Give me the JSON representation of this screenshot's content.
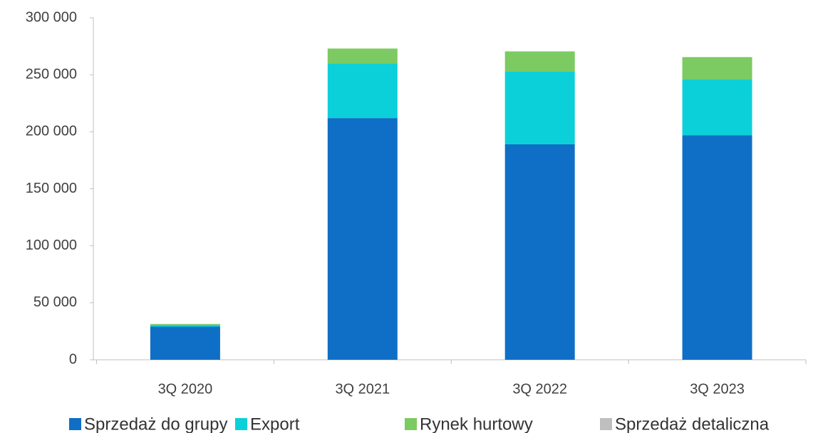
{
  "chart_data": {
    "type": "stacked_bar",
    "categories": [
      "3Q 2020",
      "3Q 2021",
      "3Q 2022",
      "3Q 2023"
    ],
    "series": [
      {
        "name": "Sprzedaż do grupy",
        "color": "#0f6fc6",
        "values": [
          29000,
          212000,
          189000,
          197000
        ]
      },
      {
        "name": "Export",
        "color": "#0bd0d9",
        "values": [
          1500,
          48000,
          64000,
          49000
        ]
      },
      {
        "name": "Rynek hurtowy",
        "color": "#7cca62",
        "values": [
          800,
          13000,
          17500,
          19500
        ]
      },
      {
        "name": "Sprzedaż detaliczna",
        "color": "#bfbfbf",
        "values": [
          200,
          0,
          0,
          0
        ]
      }
    ],
    "ylim": [
      0,
      300000
    ],
    "yticks": [
      0,
      {
        "value": 50000,
        "label": "50 000"
      },
      {
        "value": 100000,
        "label": "100 000"
      },
      {
        "value": 150000,
        "label": "150 000"
      },
      {
        "value": 200000,
        "label": "200 000"
      },
      {
        "value": 250000,
        "label": "250 000"
      },
      {
        "value": 300000,
        "label": "300 000"
      }
    ],
    "legend": "bottom"
  }
}
